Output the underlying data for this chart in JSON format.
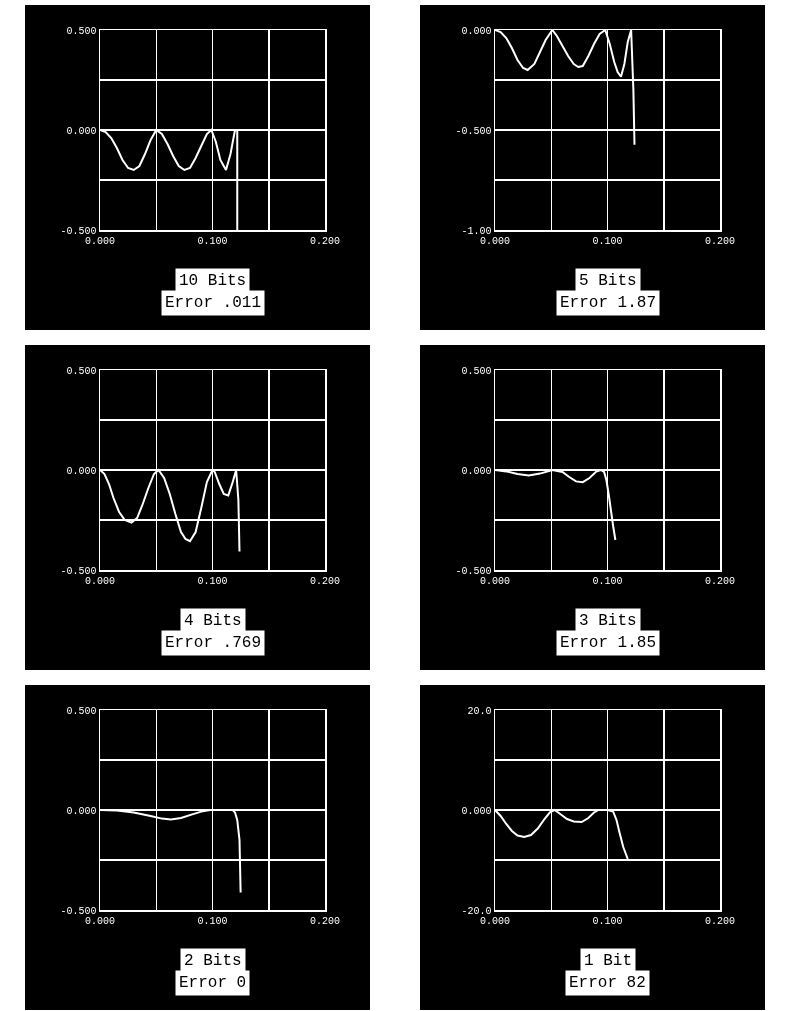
{
  "chart_data": [
    {
      "type": "line",
      "annotations": [
        "10 Bits",
        "Error .011"
      ],
      "grid": true,
      "xlim": [
        0,
        0.2
      ],
      "xticks": [
        {
          "value": 0,
          "label": "0.000"
        },
        {
          "value": 0.05,
          "label": null
        },
        {
          "value": 0.1,
          "label": "0.100"
        },
        {
          "value": 0.15,
          "label": null
        },
        {
          "value": 0.2,
          "label": "0.200"
        }
      ],
      "ylim": [
        -0.5,
        0.5
      ],
      "yticks": [
        {
          "value": -0.5,
          "label": "-0.500"
        },
        {
          "value": -0.25,
          "label": null
        },
        {
          "value": 0,
          "label": "0.000"
        },
        {
          "value": 0.25,
          "label": null
        },
        {
          "value": 0.5,
          "label": "0.500"
        }
      ],
      "x": [
        0,
        0.005,
        0.01,
        0.015,
        0.02,
        0.025,
        0.03,
        0.035,
        0.04,
        0.045,
        0.05,
        0.055,
        0.06,
        0.065,
        0.07,
        0.075,
        0.08,
        0.085,
        0.09,
        0.095,
        0.099,
        0.103,
        0.107,
        0.112,
        0.116,
        0.12,
        0.122,
        0.122
      ],
      "series": [
        {
          "color": "#ffffff",
          "values": [
            0,
            -0.01,
            -0.04,
            -0.09,
            -0.15,
            -0.19,
            -0.2,
            -0.18,
            -0.12,
            -0.05,
            0,
            -0.02,
            -0.07,
            -0.13,
            -0.18,
            -0.2,
            -0.19,
            -0.14,
            -0.08,
            -0.02,
            0,
            -0.06,
            -0.15,
            -0.2,
            -0.12,
            0,
            0,
            -0.5
          ]
        }
      ]
    },
    {
      "type": "line",
      "annotations": [
        "5 Bits",
        "Error 1.87"
      ],
      "grid": true,
      "xlim": [
        0,
        0.2
      ],
      "xticks": [
        {
          "value": 0,
          "label": "0.000"
        },
        {
          "value": 0.05,
          "label": null
        },
        {
          "value": 0.1,
          "label": "0.100"
        },
        {
          "value": 0.15,
          "label": null
        },
        {
          "value": 0.2,
          "label": "0.200"
        }
      ],
      "ylim": [
        -1,
        0
      ],
      "yticks": [
        {
          "value": -1,
          "label": "-1.00"
        },
        {
          "value": -0.75,
          "label": null
        },
        {
          "value": -0.5,
          "label": "-0.500"
        },
        {
          "value": -0.25,
          "label": null
        },
        {
          "value": 0,
          "label": "0.000"
        }
      ],
      "x": [
        0,
        0.005,
        0.01,
        0.015,
        0.02,
        0.025,
        0.029,
        0.035,
        0.04,
        0.045,
        0.051,
        0.055,
        0.06,
        0.065,
        0.07,
        0.074,
        0.078,
        0.083,
        0.088,
        0.093,
        0.098,
        0.102,
        0.106,
        0.109,
        0.112,
        0.115,
        0.118,
        0.121,
        0.123,
        0.124
      ],
      "series": [
        {
          "color": "#ffffff",
          "values": [
            0,
            -0.01,
            -0.04,
            -0.09,
            -0.15,
            -0.19,
            -0.2,
            -0.17,
            -0.11,
            -0.05,
            0,
            -0.03,
            -0.08,
            -0.13,
            -0.17,
            -0.185,
            -0.18,
            -0.13,
            -0.07,
            -0.02,
            0,
            -0.07,
            -0.16,
            -0.21,
            -0.234,
            -0.17,
            -0.06,
            0,
            -0.3,
            -0.574
          ]
        }
      ]
    },
    {
      "type": "line",
      "annotations": [
        "4 Bits",
        "Error .769"
      ],
      "grid": true,
      "xlim": [
        0,
        0.2
      ],
      "xticks": [
        {
          "value": 0,
          "label": "0.000"
        },
        {
          "value": 0.05,
          "label": null
        },
        {
          "value": 0.1,
          "label": "0.100"
        },
        {
          "value": 0.15,
          "label": null
        },
        {
          "value": 0.2,
          "label": "0.200"
        }
      ],
      "ylim": [
        -0.5,
        0.5
      ],
      "yticks": [
        {
          "value": -0.5,
          "label": "-0.500"
        },
        {
          "value": -0.25,
          "label": null
        },
        {
          "value": 0,
          "label": "0.000"
        },
        {
          "value": 0.25,
          "label": null
        },
        {
          "value": 0.5,
          "label": "0.500"
        }
      ],
      "x": [
        0,
        0.004,
        0.008,
        0.012,
        0.017,
        0.022,
        0.028,
        0.033,
        0.038,
        0.043,
        0.048,
        0.052,
        0.057,
        0.062,
        0.067,
        0.072,
        0.076,
        0.08,
        0.085,
        0.09,
        0.095,
        0.1,
        0.102,
        0.106,
        0.11,
        0.114,
        0.118,
        0.121,
        0.123,
        0.124
      ],
      "series": [
        {
          "color": "#ffffff",
          "values": [
            0,
            -0.02,
            -0.07,
            -0.14,
            -0.21,
            -0.25,
            -0.263,
            -0.24,
            -0.17,
            -0.09,
            -0.02,
            0,
            -0.04,
            -0.12,
            -0.22,
            -0.31,
            -0.345,
            -0.356,
            -0.31,
            -0.19,
            -0.06,
            0,
            -0.01,
            -0.07,
            -0.12,
            -0.127,
            -0.06,
            0,
            -0.15,
            -0.408
          ]
        }
      ]
    },
    {
      "type": "line",
      "annotations": [
        "3 Bits",
        "Error 1.85"
      ],
      "grid": true,
      "xlim": [
        0,
        0.2
      ],
      "xticks": [
        {
          "value": 0,
          "label": "0.000"
        },
        {
          "value": 0.05,
          "label": null
        },
        {
          "value": 0.1,
          "label": "0.100"
        },
        {
          "value": 0.15,
          "label": null
        },
        {
          "value": 0.2,
          "label": "0.200"
        }
      ],
      "ylim": [
        -0.5,
        0.5
      ],
      "yticks": [
        {
          "value": -0.5,
          "label": "-0.500"
        },
        {
          "value": -0.25,
          "label": null
        },
        {
          "value": 0,
          "label": "0.000"
        },
        {
          "value": 0.25,
          "label": null
        },
        {
          "value": 0.5,
          "label": "0.500"
        }
      ],
      "x": [
        0,
        0.01,
        0.02,
        0.03,
        0.04,
        0.051,
        0.06,
        0.066,
        0.072,
        0.078,
        0.084,
        0.09,
        0.094,
        0.097,
        0.099,
        0.101,
        0.103,
        0.105,
        0.107
      ],
      "series": [
        {
          "color": "#ffffff",
          "values": [
            0,
            -0.007,
            -0.02,
            -0.027,
            -0.018,
            0,
            -0.01,
            -0.035,
            -0.057,
            -0.061,
            -0.04,
            -0.008,
            0,
            -0.01,
            -0.05,
            -0.12,
            -0.2,
            -0.28,
            -0.35
          ]
        }
      ]
    },
    {
      "type": "line",
      "annotations": [
        "2 Bits",
        "Error 0"
      ],
      "grid": true,
      "xlim": [
        0,
        0.2
      ],
      "xticks": [
        {
          "value": 0,
          "label": "0.000"
        },
        {
          "value": 0.05,
          "label": null
        },
        {
          "value": 0.1,
          "label": "0.100"
        },
        {
          "value": 0.15,
          "label": null
        },
        {
          "value": 0.2,
          "label": "0.200"
        }
      ],
      "ylim": [
        -0.5,
        0.5
      ],
      "yticks": [
        {
          "value": -0.5,
          "label": "-0.500"
        },
        {
          "value": -0.25,
          "label": null
        },
        {
          "value": 0,
          "label": "0.000"
        },
        {
          "value": 0.25,
          "label": null
        },
        {
          "value": 0.5,
          "label": "0.500"
        }
      ],
      "x": [
        0,
        0.015,
        0.03,
        0.045,
        0.055,
        0.063,
        0.072,
        0.082,
        0.09,
        0.098,
        0.108,
        0.118,
        0.12,
        0.122,
        0.124,
        0.125
      ],
      "series": [
        {
          "color": "#ffffff",
          "values": [
            0,
            -0.003,
            -0.012,
            -0.03,
            -0.043,
            -0.047,
            -0.04,
            -0.022,
            -0.008,
            0,
            0,
            0,
            -0.012,
            -0.05,
            -0.15,
            -0.413
          ]
        }
      ]
    },
    {
      "type": "line",
      "annotations": [
        "1 Bit",
        "Error 82"
      ],
      "grid": true,
      "xlim": [
        0,
        0.2
      ],
      "xticks": [
        {
          "value": 0,
          "label": "0.000"
        },
        {
          "value": 0.05,
          "label": null
        },
        {
          "value": 0.1,
          "label": "0.100"
        },
        {
          "value": 0.15,
          "label": null
        },
        {
          "value": 0.2,
          "label": "0.200"
        }
      ],
      "ylim": [
        -20,
        20
      ],
      "yticks": [
        {
          "value": -20,
          "label": "-20.0"
        },
        {
          "value": -10,
          "label": null
        },
        {
          "value": 0,
          "label": "0.000"
        },
        {
          "value": 10,
          "label": null
        },
        {
          "value": 20,
          "label": "20.0"
        }
      ],
      "x": [
        0,
        0.005,
        0.01,
        0.015,
        0.02,
        0.026,
        0.032,
        0.038,
        0.044,
        0.049,
        0.053,
        0.058,
        0.064,
        0.07,
        0.077,
        0.083,
        0.088,
        0.092,
        0.1,
        0.105,
        0.108,
        0.111,
        0.114,
        0.118
      ],
      "series": [
        {
          "color": "#ffffff",
          "values": [
            0,
            -1.2,
            -2.8,
            -4.2,
            -5.1,
            -5.4,
            -5,
            -3.7,
            -1.8,
            -0.4,
            0,
            -0.8,
            -1.8,
            -2.3,
            -2.4,
            -1.6,
            -0.5,
            0,
            0,
            -0.3,
            -2,
            -4.8,
            -7.4,
            -9.8
          ]
        }
      ]
    }
  ]
}
